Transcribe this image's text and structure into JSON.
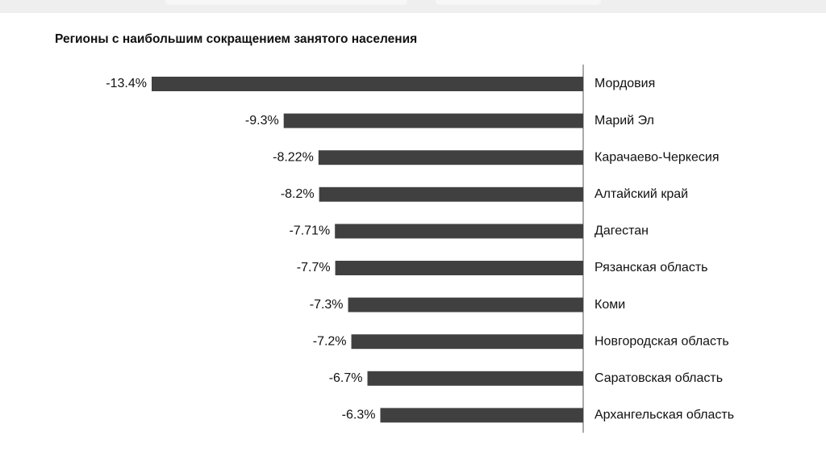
{
  "chart_data": {
    "type": "bar",
    "orientation": "horizontal",
    "title": "Регионы с наибольшим сокращением занятого населения",
    "categories": [
      "Мордовия",
      "Марий Эл",
      "Карачаево-Черкесия",
      "Алтайский край",
      "Дагестан",
      "Рязанская область",
      "Коми",
      "Новгородская область",
      "Саратовская область",
      "Архангельская область"
    ],
    "values": [
      -13.4,
      -9.3,
      -8.22,
      -8.2,
      -7.71,
      -7.7,
      -7.3,
      -7.2,
      -6.7,
      -6.3
    ],
    "value_labels": [
      "-13.4%",
      "-9.3%",
      "-8.22%",
      "-8.2%",
      "-7.71%",
      "-7.7%",
      "-7.3%",
      "-7.2%",
      "-6.7%",
      "-6.3%"
    ],
    "color": "#404040"
  }
}
